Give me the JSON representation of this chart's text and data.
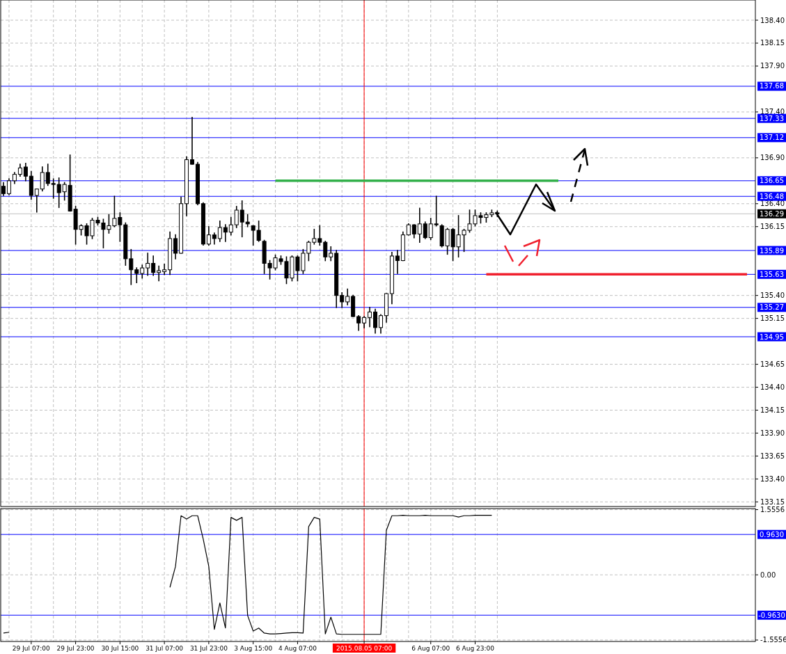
{
  "chart_data": [
    {
      "type": "candlestick",
      "tick_labels": "y",
      "grid": true,
      "categories": [
        null,
        null,
        null,
        null,
        null,
        "29 Jul 07:00",
        null,
        null,
        null,
        null,
        null,
        null,
        null,
        "29 Jul 23:00",
        null,
        null,
        null,
        null,
        null,
        null,
        null,
        "30 Jul 15:00",
        null,
        null,
        null,
        null,
        null,
        null,
        null,
        "31 Jul 07:00",
        null,
        null,
        null,
        null,
        null,
        null,
        null,
        "31 Jul 23:00",
        null,
        null,
        null,
        null,
        null,
        null,
        null,
        "3 Aug 15:00",
        null,
        null,
        null,
        null,
        null,
        null,
        null,
        "4 Aug 07:00",
        null,
        null,
        null,
        null,
        null,
        null,
        null,
        null,
        null,
        null,
        null,
        "2015.08.05 07:00",
        null,
        null,
        null,
        null,
        null,
        null,
        null,
        null,
        null,
        null,
        null,
        "6 Aug 07:00",
        null,
        null,
        null,
        null,
        null,
        null,
        null,
        "6 Aug 23:00",
        null,
        null,
        null,
        null,
        null,
        null,
        null,
        null,
        null,
        null,
        null,
        null,
        null,
        null,
        null,
        null,
        null,
        null,
        null,
        null,
        null,
        null,
        null,
        null,
        null,
        null,
        null,
        null,
        null,
        null,
        null,
        null,
        null,
        null,
        null,
        null,
        null,
        null,
        null,
        null,
        null,
        null,
        null,
        null,
        null,
        null,
        null,
        null,
        null,
        null
      ],
      "ohlc": [
        [
          136.59,
          136.63,
          136.49,
          136.51
        ],
        [
          136.51,
          136.67,
          136.5,
          136.65
        ],
        [
          136.65,
          136.74,
          136.62,
          136.72
        ],
        [
          136.72,
          136.83,
          136.7,
          136.79
        ],
        [
          136.8,
          136.84,
          136.65,
          136.7
        ],
        [
          136.7,
          136.75,
          136.45,
          136.49
        ],
        [
          136.49,
          136.56,
          136.31,
          136.56
        ],
        [
          136.56,
          136.8,
          136.54,
          136.74
        ],
        [
          136.74,
          136.83,
          136.6,
          136.62
        ],
        [
          136.62,
          136.67,
          136.46,
          136.61
        ],
        [
          136.61,
          136.68,
          136.36,
          136.52
        ],
        [
          136.53,
          136.63,
          136.44,
          136.61
        ],
        [
          136.6,
          136.93,
          136.32,
          136.32
        ],
        [
          136.34,
          136.37,
          135.96,
          136.12
        ],
        [
          136.12,
          136.17,
          136.06,
          136.16
        ],
        [
          136.16,
          136.18,
          135.96,
          136.05
        ],
        [
          136.05,
          136.24,
          136.02,
          136.22
        ],
        [
          136.22,
          136.25,
          136.17,
          136.19
        ],
        [
          136.19,
          136.23,
          135.92,
          136.12
        ],
        [
          136.12,
          136.28,
          136.08,
          136.16
        ],
        [
          136.16,
          136.48,
          136.15,
          136.24
        ],
        [
          136.25,
          136.3,
          135.99,
          136.17
        ],
        [
          136.17,
          136.19,
          135.73,
          135.8
        ],
        [
          135.8,
          135.9,
          135.52,
          135.68
        ],
        [
          135.68,
          135.7,
          135.54,
          135.64
        ],
        [
          135.64,
          135.73,
          135.59,
          135.7
        ],
        [
          135.7,
          135.86,
          135.62,
          135.75
        ],
        [
          135.75,
          135.83,
          135.62,
          135.65
        ],
        [
          135.65,
          135.72,
          135.56,
          135.67
        ],
        [
          135.66,
          135.74,
          135.63,
          135.68
        ],
        [
          135.68,
          136.09,
          135.63,
          136.02
        ],
        [
          136.02,
          136.06,
          135.8,
          135.86
        ],
        [
          135.86,
          136.47,
          135.86,
          136.4
        ],
        [
          136.4,
          136.91,
          136.27,
          136.88
        ],
        [
          136.88,
          137.34,
          136.83,
          136.83
        ],
        [
          136.83,
          136.85,
          136.39,
          136.4
        ],
        [
          136.4,
          136.41,
          135.95,
          135.96
        ],
        [
          135.96,
          136.15,
          135.95,
          136.06
        ],
        [
          136.06,
          136.08,
          135.96,
          136.02
        ],
        [
          136.02,
          136.21,
          135.99,
          136.14
        ],
        [
          136.14,
          136.17,
          135.99,
          136.09
        ],
        [
          136.09,
          136.25,
          136.06,
          136.17
        ],
        [
          136.17,
          136.37,
          136.14,
          136.33
        ],
        [
          136.33,
          136.43,
          136.04,
          136.2
        ],
        [
          136.2,
          136.28,
          136.15,
          136.18
        ],
        [
          136.16,
          136.16,
          135.95,
          136.11
        ],
        [
          136.11,
          136.21,
          135.99,
          136.0
        ],
        [
          135.99,
          136.0,
          135.64,
          135.75
        ],
        [
          135.75,
          135.78,
          135.58,
          135.7
        ],
        [
          135.7,
          135.84,
          135.68,
          135.81
        ],
        [
          135.8,
          135.83,
          135.74,
          135.77
        ],
        [
          135.77,
          135.82,
          135.53,
          135.59
        ],
        [
          135.59,
          135.83,
          135.56,
          135.82
        ],
        [
          135.82,
          135.83,
          135.56,
          135.67
        ],
        [
          135.67,
          135.9,
          135.64,
          135.86
        ],
        [
          135.86,
          135.99,
          135.78,
          135.98
        ],
        [
          135.98,
          136.12,
          135.96,
          136.02
        ],
        [
          136.02,
          136.16,
          135.95,
          135.98
        ],
        [
          135.98,
          135.99,
          135.78,
          135.82
        ],
        [
          135.82,
          135.93,
          135.78,
          135.86
        ],
        [
          135.86,
          135.89,
          135.27,
          135.4
        ],
        [
          135.4,
          135.43,
          135.27,
          135.33
        ],
        [
          135.33,
          135.47,
          135.3,
          135.39
        ],
        [
          135.39,
          135.4,
          135.17,
          135.17
        ],
        [
          135.17,
          135.18,
          135.02,
          135.1
        ],
        [
          135.1,
          135.17,
          135.05,
          135.16
        ],
        [
          135.16,
          135.27,
          135.06,
          135.22
        ],
        [
          135.22,
          135.25,
          134.99,
          135.05
        ],
        [
          135.05,
          135.19,
          134.99,
          135.18
        ],
        [
          135.18,
          135.42,
          135.11,
          135.42
        ],
        [
          135.42,
          135.87,
          135.31,
          135.83
        ],
        [
          135.83,
          135.89,
          135.64,
          135.78
        ],
        [
          135.78,
          136.09,
          135.78,
          136.06
        ],
        [
          136.06,
          136.18,
          136.06,
          136.17
        ],
        [
          136.17,
          136.17,
          136.03,
          136.07
        ],
        [
          136.07,
          136.35,
          135.98,
          136.18
        ],
        [
          136.18,
          136.2,
          136.02,
          136.03
        ],
        [
          136.03,
          136.24,
          136.01,
          136.18
        ],
        [
          136.18,
          136.48,
          136.16,
          136.17
        ],
        [
          136.16,
          136.17,
          135.93,
          135.94
        ],
        [
          135.94,
          136.13,
          135.85,
          136.12
        ],
        [
          136.12,
          136.13,
          135.78,
          135.93
        ],
        [
          135.93,
          136.27,
          135.82,
          136.06
        ],
        [
          136.06,
          136.12,
          135.88,
          136.11
        ],
        [
          136.11,
          136.33,
          136.09,
          136.18
        ],
        [
          136.18,
          136.33,
          136.16,
          136.27
        ],
        [
          136.27,
          136.3,
          136.19,
          136.25
        ],
        [
          136.25,
          136.3,
          136.2,
          136.28
        ],
        [
          136.28,
          136.33,
          136.26,
          136.3
        ],
        [
          136.3,
          136.32,
          136.26,
          136.29
        ],
        null,
        null,
        null,
        null,
        null,
        null,
        null,
        null,
        null,
        null,
        null,
        null,
        null,
        null,
        null,
        null,
        null,
        null,
        null,
        null,
        null,
        null,
        null,
        null,
        null,
        null,
        null,
        null,
        null,
        null,
        null,
        null,
        null,
        null,
        null,
        null,
        null,
        null,
        null,
        null,
        null,
        null,
        null,
        null,
        null,
        null
      ],
      "series": [
        {
          "type": "line",
          "color": "#33b04a",
          "values": [
            null,
            null,
            null,
            null,
            null,
            null,
            null,
            null,
            null,
            null,
            null,
            null,
            null,
            null,
            null,
            null,
            null,
            null,
            null,
            null,
            null,
            null,
            null,
            null,
            null,
            null,
            null,
            null,
            null,
            null,
            null,
            null,
            null,
            null,
            null,
            null,
            null,
            null,
            null,
            null,
            null,
            null,
            null,
            null,
            null,
            null,
            null,
            null,
            null,
            136.65,
            136.65,
            136.65,
            136.65,
            136.65,
            136.65,
            136.65,
            136.65,
            136.65,
            136.65,
            136.65,
            136.65,
            136.65,
            136.65,
            136.65,
            136.65,
            136.65,
            136.65,
            136.65,
            136.65,
            136.65,
            136.65,
            136.65,
            136.65,
            136.65,
            136.65,
            136.65,
            136.65,
            136.65,
            136.65,
            136.65,
            136.65,
            136.65,
            136.65,
            136.65,
            136.65,
            136.65,
            136.65,
            136.65,
            136.65,
            136.65,
            136.65,
            136.65,
            136.65,
            136.65,
            136.65,
            136.65,
            136.65,
            136.65,
            136.65,
            136.65,
            136.65,
            null,
            null,
            null,
            null,
            null,
            null,
            null,
            null,
            null,
            null,
            null,
            null,
            null,
            null,
            null,
            null,
            null,
            null,
            null,
            null,
            null,
            null,
            null,
            null,
            null,
            null,
            null,
            null,
            null,
            null,
            null,
            null,
            null,
            null,
            null
          ]
        },
        {
          "type": "line",
          "color": "#f0202e",
          "values": [
            null,
            null,
            null,
            null,
            null,
            null,
            null,
            null,
            null,
            null,
            null,
            null,
            null,
            null,
            null,
            null,
            null,
            null,
            null,
            null,
            null,
            null,
            null,
            null,
            null,
            null,
            null,
            null,
            null,
            null,
            null,
            null,
            null,
            null,
            null,
            null,
            null,
            null,
            null,
            null,
            null,
            null,
            null,
            null,
            null,
            null,
            null,
            null,
            null,
            null,
            null,
            null,
            null,
            null,
            null,
            null,
            null,
            null,
            null,
            null,
            null,
            null,
            null,
            null,
            null,
            null,
            null,
            null,
            null,
            null,
            null,
            null,
            null,
            null,
            null,
            null,
            null,
            null,
            null,
            null,
            null,
            null,
            null,
            null,
            null,
            null,
            null,
            135.63,
            135.63,
            135.63,
            135.63,
            135.63,
            135.63,
            135.63,
            135.63,
            135.63,
            135.63,
            135.63,
            135.63,
            135.63,
            135.63,
            135.63,
            135.63,
            135.63,
            135.63,
            135.63,
            135.63,
            135.63,
            135.63,
            135.63,
            135.63,
            135.63,
            135.63,
            135.63,
            135.63,
            135.63,
            135.63,
            135.63,
            135.63,
            135.63,
            135.63,
            135.63,
            135.63,
            135.63,
            135.63,
            135.63,
            135.63,
            135.63,
            135.63,
            135.63,
            135.63,
            135.63,
            135.63,
            135.63,
            135.63,
            null
          ]
        }
      ],
      "ylim": [
        133.1,
        138.62
      ],
      "yticks": [
        {
          "value": 138.4,
          "label": "138.40"
        },
        {
          "value": 138.15,
          "label": "138.15"
        },
        {
          "value": 137.9,
          "label": "137.90"
        },
        {
          "value": 137.4,
          "label": "137.40"
        },
        {
          "value": 136.9,
          "label": "136.90"
        },
        {
          "value": 136.4,
          "label": "136.40"
        },
        {
          "value": 136.15,
          "label": "136.15"
        },
        {
          "value": 135.4,
          "label": "135.40"
        },
        {
          "value": 135.15,
          "label": "135.15"
        },
        {
          "value": 134.65,
          "label": "134.65"
        },
        {
          "value": 134.4,
          "label": "134.40"
        },
        {
          "value": 134.15,
          "label": "134.15"
        },
        {
          "value": 133.9,
          "label": "133.90"
        },
        {
          "value": 133.65,
          "label": "133.65"
        },
        {
          "value": 133.4,
          "label": "133.40"
        },
        {
          "value": 133.15,
          "label": "133.15"
        }
      ],
      "ref_lines": [
        {
          "axis": "y",
          "value": 137.68,
          "label": "137.68",
          "color": "#0000ff"
        },
        {
          "axis": "y",
          "value": 137.33,
          "label": "137.33",
          "color": "#0000ff"
        },
        {
          "axis": "y",
          "value": 137.12,
          "label": "137.12",
          "color": "#0000ff"
        },
        {
          "axis": "y",
          "value": 136.65,
          "label": "136.65",
          "color": "#0000ff"
        },
        {
          "axis": "y",
          "value": 136.48,
          "label": "136.48",
          "color": "#0000ff"
        },
        {
          "axis": "y",
          "value": 136.29,
          "label": "136.29",
          "color": "#c0c0c0"
        },
        {
          "axis": "y",
          "value": 135.89,
          "label": "135.89",
          "color": "#0000ff"
        },
        {
          "axis": "y",
          "value": 135.63,
          "label": "135.63",
          "color": "#0000ff"
        },
        {
          "axis": "y",
          "value": 135.27,
          "label": "135.27",
          "color": "#0000ff"
        },
        {
          "axis": "y",
          "value": 134.95,
          "label": "134.95",
          "color": "#0000ff"
        },
        {
          "axis": "x",
          "value": "2015.08.05 07:00",
          "color": "#ff0000"
        }
      ]
    },
    {
      "type": "line",
      "grid": true,
      "categories": [
        null,
        null,
        null,
        null,
        null,
        "29 Jul 07:00",
        null,
        null,
        null,
        null,
        null,
        null,
        null,
        "29 Jul 23:00",
        null,
        null,
        null,
        null,
        null,
        null,
        null,
        "30 Jul 15:00",
        null,
        null,
        null,
        null,
        null,
        null,
        null,
        "31 Jul 07:00",
        null,
        null,
        null,
        null,
        null,
        null,
        null,
        "31 Jul 23:00",
        null,
        null,
        null,
        null,
        null,
        null,
        null,
        "3 Aug 15:00",
        null,
        null,
        null,
        null,
        null,
        null,
        null,
        "4 Aug 07:00",
        null,
        null,
        null,
        null,
        null,
        null,
        null,
        null,
        null,
        null,
        null,
        "2015.08.05 07:00",
        null,
        null,
        null,
        null,
        null,
        null,
        null,
        null,
        null,
        null,
        null,
        "6 Aug 07:00",
        null,
        null,
        null,
        null,
        null,
        null,
        null,
        "6 Aug 23:00",
        null,
        null,
        null,
        null,
        null,
        null,
        null,
        null,
        null,
        null,
        null,
        null,
        null,
        null,
        null,
        null,
        null,
        null,
        null,
        null,
        null,
        null,
        null,
        null,
        null,
        null,
        null,
        null,
        null,
        null,
        null,
        null,
        null,
        null,
        null,
        null,
        null,
        null,
        null,
        null,
        null,
        null,
        null,
        null,
        null,
        null,
        null,
        null,
        null,
        null
      ],
      "series": [
        {
          "color": "#000000",
          "values": [
            -1.39,
            -1.37,
            null,
            null,
            null,
            null,
            null,
            null,
            null,
            null,
            null,
            null,
            null,
            null,
            null,
            null,
            null,
            null,
            null,
            null,
            null,
            null,
            null,
            null,
            null,
            null,
            null,
            null,
            null,
            null,
            -0.3,
            0.2,
            1.41,
            1.33,
            1.41,
            1.41,
            0.85,
            0.2,
            -1.3,
            -0.67,
            -1.27,
            1.37,
            1.3,
            1.37,
            -0.97,
            -1.34,
            -1.27,
            -1.39,
            -1.41,
            -1.41,
            -1.4,
            -1.39,
            -1.38,
            -1.38,
            -1.39,
            1.15,
            1.37,
            1.33,
            -1.41,
            -1.01,
            -1.41,
            -1.42,
            -1.42,
            -1.42,
            -1.42,
            -1.42,
            -1.42,
            -1.42,
            -1.42,
            1.06,
            1.41,
            1.41,
            1.42,
            1.41,
            1.41,
            1.41,
            1.42,
            1.41,
            1.41,
            1.41,
            1.41,
            1.41,
            1.38,
            1.41,
            1.41,
            1.42,
            1.42,
            1.42,
            1.42,
            null,
            null,
            null,
            null,
            null,
            null,
            null,
            null,
            null,
            null,
            null,
            null,
            null,
            null,
            null,
            null,
            null,
            null,
            null,
            null,
            null,
            null,
            null,
            null,
            null,
            null,
            null,
            null,
            null,
            null,
            null,
            null,
            null,
            null,
            null,
            null,
            null,
            null,
            null,
            null,
            null,
            null,
            null,
            null,
            null,
            null,
            null
          ]
        }
      ],
      "ylim": [
        -1.59,
        1.58
      ],
      "yticks": [
        1.5556,
        {
          "value": 0,
          "label": "0.00"
        },
        -1.5556
      ],
      "ref_lines": [
        {
          "axis": "y",
          "value": 0.963,
          "label": "0.9630",
          "color": "#0000ff"
        },
        {
          "axis": "y",
          "value": -0.963,
          "label": "-0.9630",
          "color": "#0000ff"
        },
        {
          "axis": "x",
          "value": "2015.08.05 07:00",
          "color": "#ff0000"
        }
      ]
    }
  ]
}
